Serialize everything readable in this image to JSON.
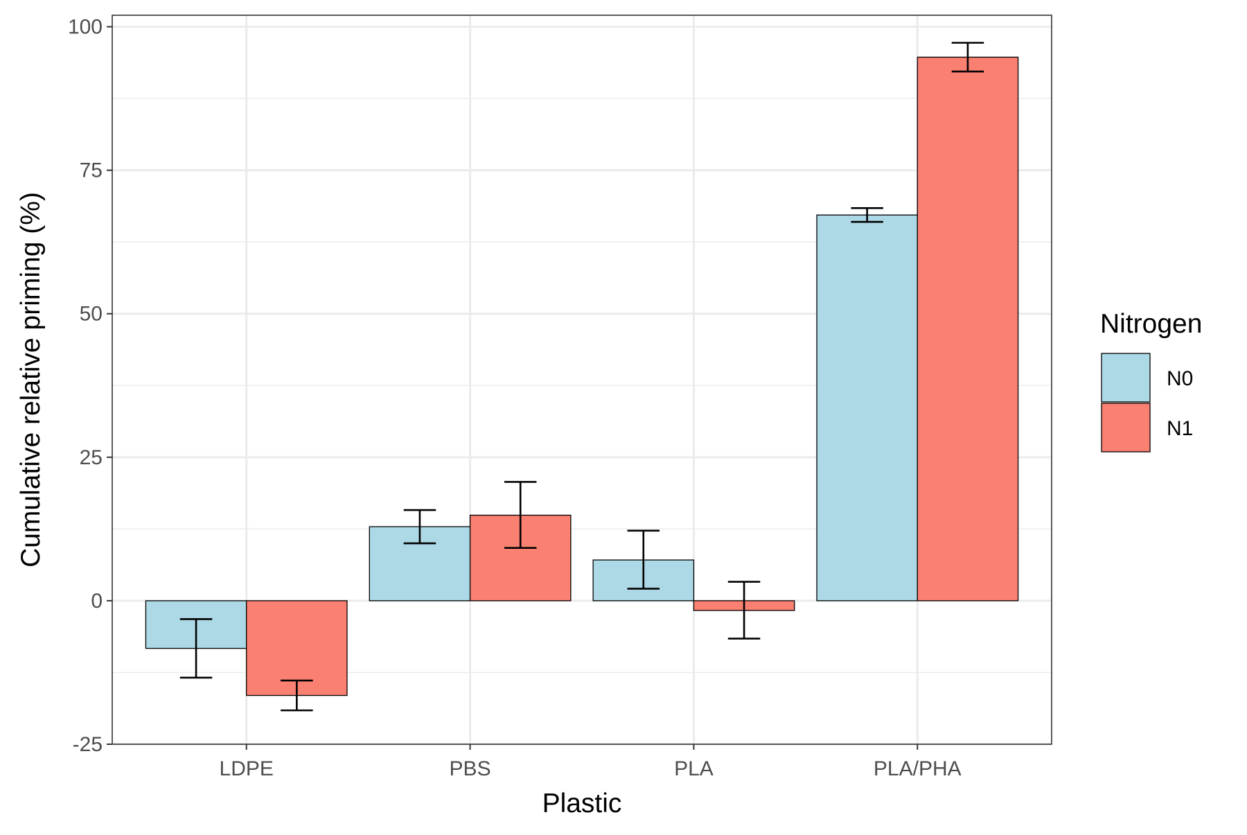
{
  "chart_data": {
    "type": "bar",
    "title": "",
    "xlabel": "Plastic",
    "ylabel": "Cumulative relative priming (%)",
    "categories": [
      "LDPE",
      "PBS",
      "PLA",
      "PLA/PHA"
    ],
    "ylim": [
      -25,
      102
    ],
    "y_ticks": [
      -25,
      0,
      25,
      50,
      75,
      100
    ],
    "y_tick_labels": [
      "-25",
      "0",
      "25",
      "50",
      "75",
      "100"
    ],
    "grid": true,
    "legend": {
      "title": "Nitrogen",
      "position": "right"
    },
    "series": [
      {
        "name": "N0",
        "color": "#add8e6",
        "values": [
          -8.3,
          12.9,
          7.1,
          67.2
        ],
        "error_low": [
          -13.4,
          10.0,
          2.1,
          66.0
        ],
        "error_high": [
          -3.2,
          15.8,
          12.2,
          68.4
        ]
      },
      {
        "name": "N1",
        "color": "#fa8072",
        "values": [
          -16.5,
          14.9,
          -1.7,
          94.7
        ],
        "error_low": [
          -19.1,
          9.2,
          -6.6,
          92.2
        ],
        "error_high": [
          -13.9,
          20.7,
          3.3,
          97.2
        ]
      }
    ]
  }
}
